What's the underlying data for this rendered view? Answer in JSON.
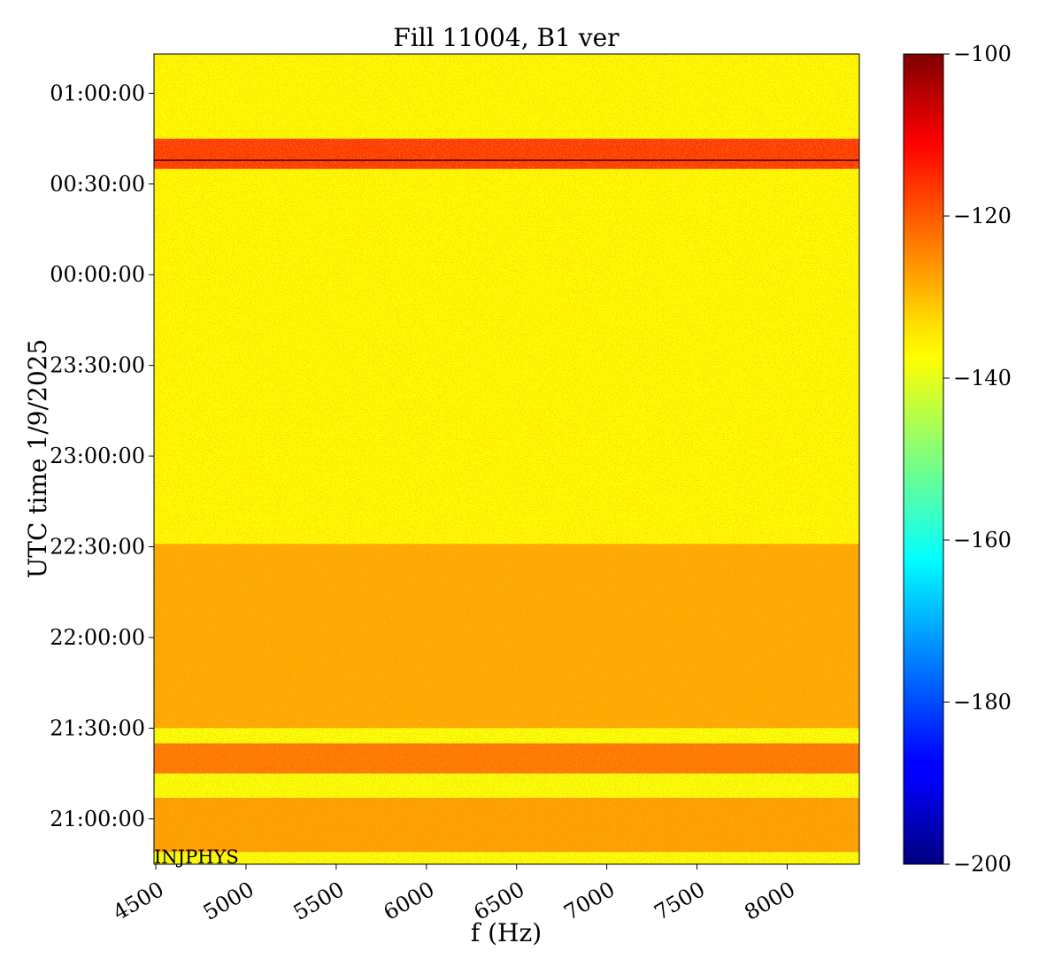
{
  "chart_data": {
    "type": "heatmap",
    "title": "Fill 11004, B1 ver",
    "xlabel": "f (Hz)",
    "ylabel": "UTC time 1/9/2025",
    "xlim": [
      4490,
      8400
    ],
    "x_ticks": [
      4500,
      5000,
      5500,
      6000,
      6500,
      7000,
      7500,
      8000
    ],
    "y_ticks": [
      "21:00:00",
      "21:30:00",
      "22:00:00",
      "22:30:00",
      "23:00:00",
      "23:30:00",
      "00:00:00",
      "00:30:00",
      "01:00:00"
    ],
    "y_tick_minutes": [
      0,
      30,
      60,
      90,
      120,
      150,
      180,
      210,
      240
    ],
    "ylim_minutes": [
      -15,
      253
    ],
    "colorbar": {
      "colormap": "jet",
      "vmin": -200,
      "vmax": -100,
      "ticks": [
        -100,
        -120,
        -140,
        -160,
        -180,
        -200
      ],
      "tick_labels": [
        "−100",
        "−120",
        "−140",
        "−160",
        "−180",
        "−200"
      ]
    },
    "annotation": "INJPHYS",
    "bands": [
      {
        "start": -15,
        "end": -11,
        "level": -138
      },
      {
        "start": -11,
        "end": 7,
        "level": -128
      },
      {
        "start": 7,
        "end": 15,
        "level": -138
      },
      {
        "start": 15,
        "end": 25,
        "level": -124
      },
      {
        "start": 25,
        "end": 30,
        "level": -138
      },
      {
        "start": 30,
        "end": 91,
        "level": -129
      },
      {
        "start": 91,
        "end": 215,
        "level": -137
      },
      {
        "start": 215,
        "end": 225,
        "level": -118
      },
      {
        "start": 225,
        "end": 253,
        "level": -137
      }
    ]
  }
}
